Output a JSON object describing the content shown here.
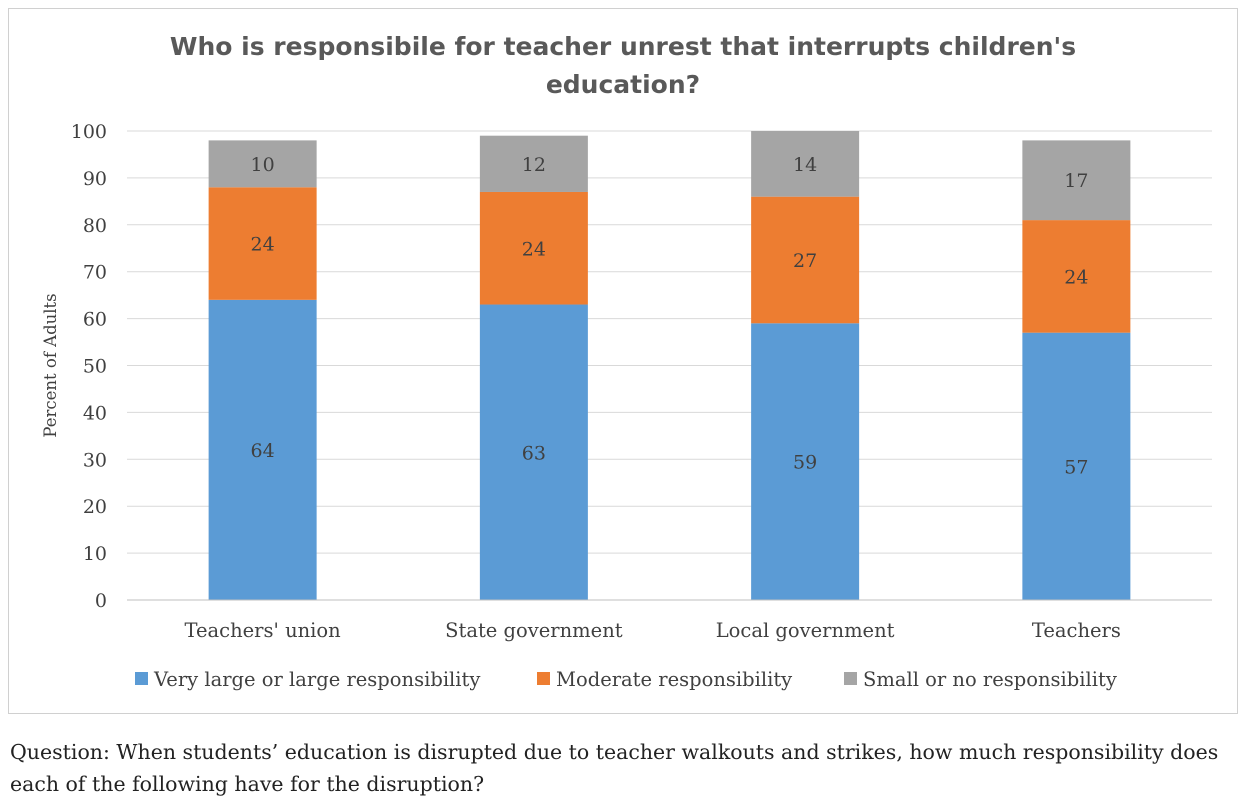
{
  "chart_data": {
    "type": "bar",
    "stacked": true,
    "title": "Who is responsibile for teacher unrest that interrupts children's education?",
    "ylabel": "Percent of Adults",
    "xlabel": "",
    "ylim": [
      0,
      100
    ],
    "yticks": [
      0,
      10,
      20,
      30,
      40,
      50,
      60,
      70,
      80,
      90,
      100
    ],
    "grid": true,
    "legend_position": "bottom",
    "categories": [
      "Teachers' union",
      "State government",
      "Local government",
      "Teachers"
    ],
    "series": [
      {
        "name": "Very large or large responsibility",
        "color": "#5b9bd5",
        "values": [
          64,
          63,
          59,
          57
        ]
      },
      {
        "name": "Moderate responsibility",
        "color": "#ed7d31",
        "values": [
          24,
          24,
          27,
          24
        ]
      },
      {
        "name": "Small or no responsibility",
        "color": "#a5a5a5",
        "values": [
          10,
          12,
          14,
          17
        ]
      }
    ]
  },
  "question": "Question: When students’ education is disrupted due to teacher walkouts and strikes, how much responsibility does each of the following have for the disruption?"
}
